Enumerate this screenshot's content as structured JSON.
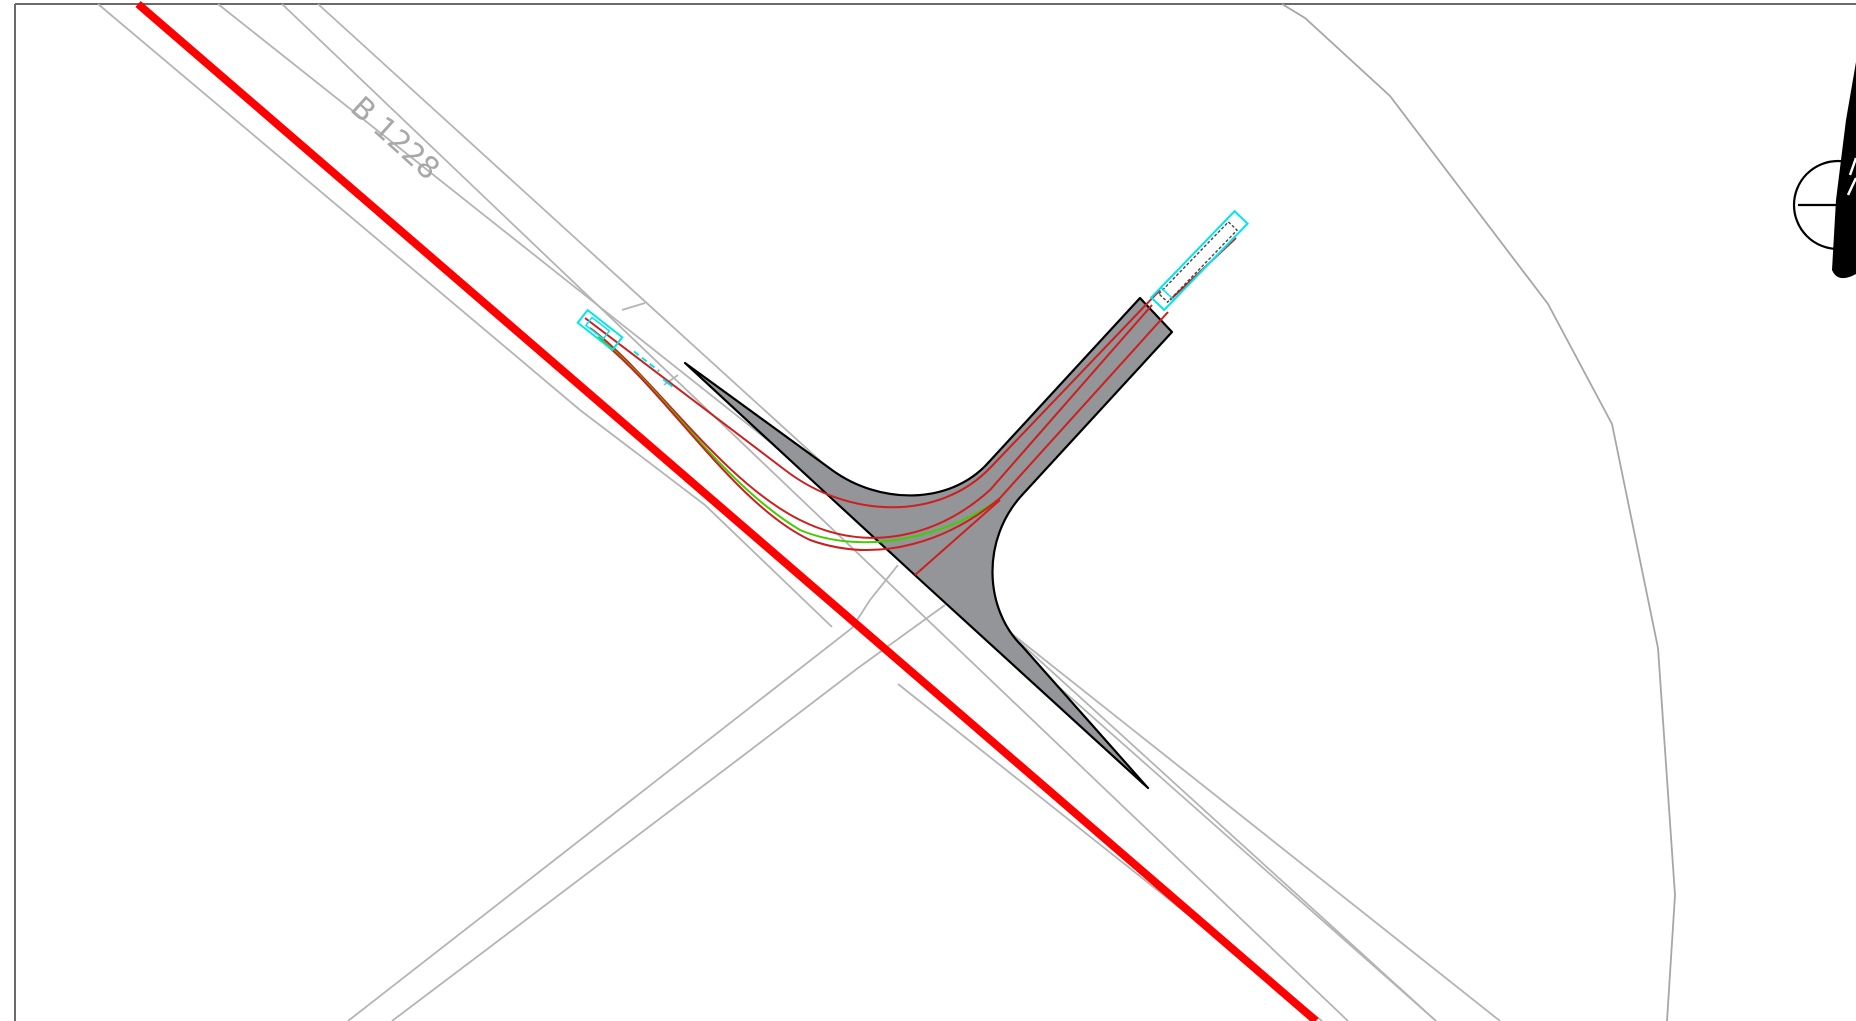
{
  "drawing": {
    "road_label": "B 1228",
    "colors": {
      "background": "#ffffff",
      "frame": "#6b6b6b",
      "road_edge": "#b4b4b4",
      "highlight_line": "#ff0000",
      "paved_area": "#939598",
      "swept_path": "#cc1f1f",
      "wheel_path": "#44cc00",
      "vehicle_outline": "#00e5ee",
      "north_arrow": "#000000"
    },
    "symbols": {
      "north_arrow": "north-arrow-icon",
      "vehicle_start": "vehicle-icon",
      "vehicle_end": "vehicle-icon"
    }
  }
}
